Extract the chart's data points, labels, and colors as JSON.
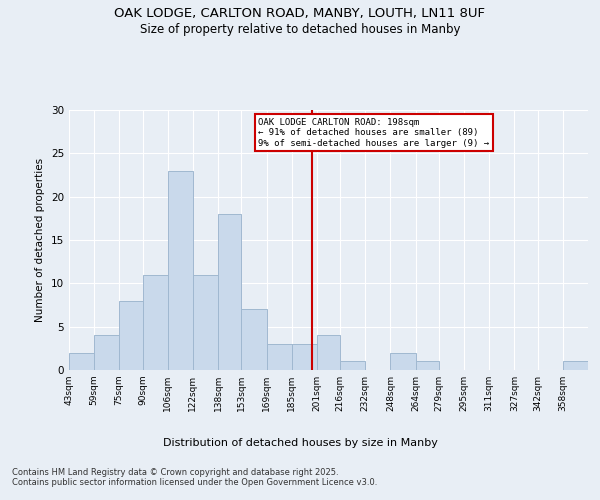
{
  "title_line1": "OAK LODGE, CARLTON ROAD, MANBY, LOUTH, LN11 8UF",
  "title_line2": "Size of property relative to detached houses in Manby",
  "xlabel": "Distribution of detached houses by size in Manby",
  "ylabel": "Number of detached properties",
  "bin_labels": [
    "43sqm",
    "59sqm",
    "75sqm",
    "90sqm",
    "106sqm",
    "122sqm",
    "138sqm",
    "153sqm",
    "169sqm",
    "185sqm",
    "201sqm",
    "216sqm",
    "232sqm",
    "248sqm",
    "264sqm",
    "279sqm",
    "295sqm",
    "311sqm",
    "327sqm",
    "342sqm",
    "358sqm"
  ],
  "bar_heights": [
    2,
    4,
    8,
    11,
    23,
    11,
    18,
    7,
    3,
    3,
    4,
    1,
    0,
    2,
    1,
    0,
    0,
    0,
    0,
    0,
    1
  ],
  "bar_color": "#c9d9eb",
  "bar_edge_color": "#a0b8d0",
  "vline_x": 198,
  "bin_edges": [
    43,
    59,
    75,
    90,
    106,
    122,
    138,
    153,
    169,
    185,
    201,
    216,
    232,
    248,
    264,
    279,
    295,
    311,
    327,
    342,
    358,
    374
  ],
  "annotation_text": "OAK LODGE CARLTON ROAD: 198sqm\n← 91% of detached houses are smaller (89)\n9% of semi-detached houses are larger (9) →",
  "annotation_box_color": "#ffffff",
  "annotation_box_edge": "#cc0000",
  "vline_color": "#cc0000",
  "bg_color": "#e8eef5",
  "plot_bg_color": "#e8eef5",
  "footer_text": "Contains HM Land Registry data © Crown copyright and database right 2025.\nContains public sector information licensed under the Open Government Licence v3.0.",
  "ylim": [
    0,
    30
  ],
  "yticks": [
    0,
    5,
    10,
    15,
    20,
    25,
    30
  ]
}
